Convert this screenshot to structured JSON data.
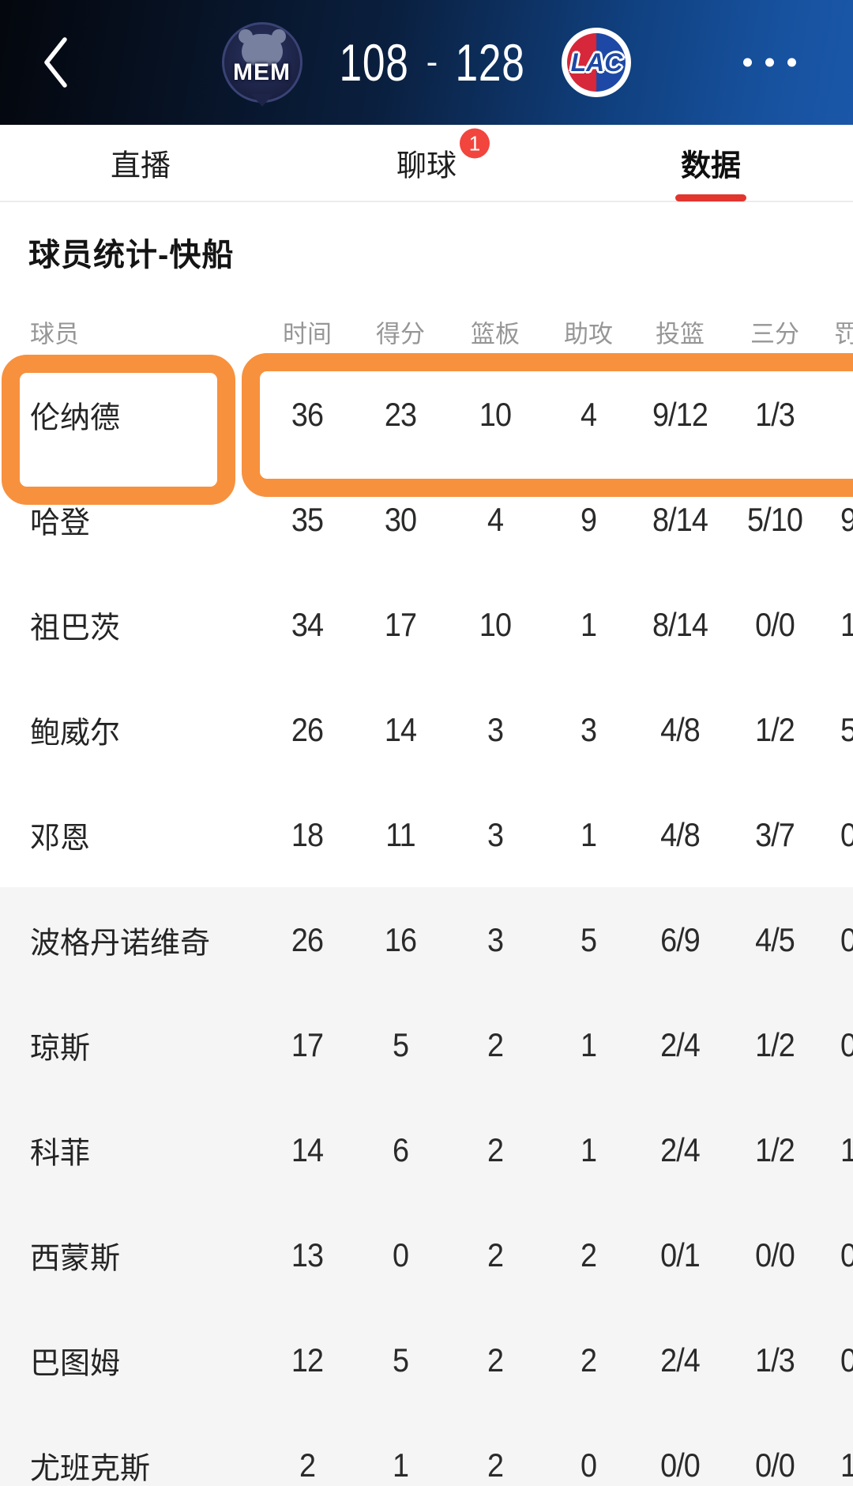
{
  "topbar": {
    "back_icon": "chevron-left",
    "home_team_abbr": "MEM",
    "away_team_abbr": "LAC",
    "home_score": "108",
    "score_separator": "-",
    "away_score": "128",
    "more_icon": "ellipsis"
  },
  "tabs": [
    {
      "label": "直播",
      "active": false
    },
    {
      "label": "聊球",
      "active": false,
      "badge": "1"
    },
    {
      "label": "数据",
      "active": true
    }
  ],
  "section_title": "球员统计-快船",
  "table": {
    "columns": [
      "球员",
      "时间",
      "得分",
      "篮板",
      "助攻",
      "投篮",
      "三分",
      "罚球"
    ],
    "rows": [
      {
        "name": "伦纳德",
        "values": [
          "36",
          "23",
          "10",
          "4",
          "9/12",
          "1/3",
          ""
        ],
        "highlighted": true,
        "shaded": false
      },
      {
        "name": "哈登",
        "values": [
          "35",
          "30",
          "4",
          "9",
          "8/14",
          "5/10",
          "9"
        ],
        "highlighted": false,
        "shaded": false
      },
      {
        "name": "祖巴茨",
        "values": [
          "34",
          "17",
          "10",
          "1",
          "8/14",
          "0/0",
          "1"
        ],
        "highlighted": false,
        "shaded": false
      },
      {
        "name": "鲍威尔",
        "values": [
          "26",
          "14",
          "3",
          "3",
          "4/8",
          "1/2",
          "5"
        ],
        "highlighted": false,
        "shaded": false
      },
      {
        "name": "邓恩",
        "values": [
          "18",
          "11",
          "3",
          "1",
          "4/8",
          "3/7",
          "0"
        ],
        "highlighted": false,
        "shaded": false
      },
      {
        "name": "波格丹诺维奇",
        "values": [
          "26",
          "16",
          "3",
          "5",
          "6/9",
          "4/5",
          "0"
        ],
        "highlighted": false,
        "shaded": true
      },
      {
        "name": "琼斯",
        "values": [
          "17",
          "5",
          "2",
          "1",
          "2/4",
          "1/2",
          "0"
        ],
        "highlighted": false,
        "shaded": true
      },
      {
        "name": "科菲",
        "values": [
          "14",
          "6",
          "2",
          "1",
          "2/4",
          "1/2",
          "1"
        ],
        "highlighted": false,
        "shaded": true
      },
      {
        "name": "西蒙斯",
        "values": [
          "13",
          "0",
          "2",
          "2",
          "0/1",
          "0/0",
          "0"
        ],
        "highlighted": false,
        "shaded": true
      },
      {
        "name": "巴图姆",
        "values": [
          "12",
          "5",
          "2",
          "2",
          "2/4",
          "1/3",
          "0"
        ],
        "highlighted": false,
        "shaded": true
      },
      {
        "name": "尤班克斯",
        "values": [
          "2",
          "1",
          "2",
          "0",
          "0/0",
          "0/0",
          "1"
        ],
        "highlighted": false,
        "shaded": true
      }
    ]
  },
  "colors": {
    "annotation_orange": "#F7913E",
    "active_tab_red": "#E2352E",
    "badge_red": "#F2453D",
    "topbar_blue": "#1A57A8",
    "topbar_dark": "#04070D",
    "shaded_row_gray": "#F5F5F6",
    "header_text_gray": "#969696"
  }
}
